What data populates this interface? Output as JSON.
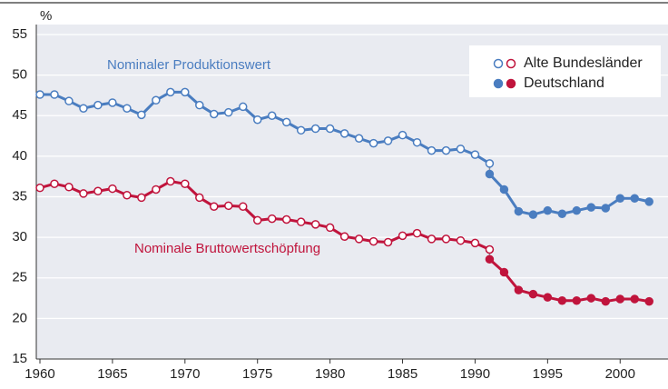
{
  "chart_data": {
    "type": "line",
    "y_unit_label": "%",
    "xlim": [
      1959.75,
      2003.3
    ],
    "xticks": [
      1960,
      1965,
      1970,
      1975,
      1980,
      1985,
      1990,
      1995,
      2000
    ],
    "ylim": [
      15,
      55
    ],
    "yticks": [
      15,
      20,
      25,
      30,
      35,
      40,
      45,
      50,
      55
    ],
    "grid": true,
    "legend_position": "upper right",
    "legend": [
      {
        "label": "Alte Bundesländer",
        "marker": "open"
      },
      {
        "label": "Deutschland",
        "marker": "filled"
      }
    ],
    "series": [
      {
        "name": "Nominaler Produktionswert",
        "color": "#4a7dc0",
        "parts": [
          {
            "x": [
              1960,
              1961,
              1962,
              1963,
              1964,
              1965,
              1966,
              1967,
              1968,
              1969,
              1970,
              1971,
              1972,
              1973,
              1974,
              1975,
              1976,
              1977,
              1978,
              1979,
              1980,
              1981,
              1982,
              1983,
              1984,
              1985,
              1986,
              1987,
              1988,
              1989,
              1990,
              1991
            ],
            "values": [
              47.6,
              47.6,
              46.8,
              45.9,
              46.3,
              46.6,
              45.9,
              45.1,
              46.9,
              47.9,
              47.9,
              46.3,
              45.2,
              45.4,
              46.1,
              44.5,
              45.0,
              44.2,
              43.2,
              43.4,
              43.4,
              42.8,
              42.2,
              41.6,
              41.9,
              42.6,
              41.7,
              40.7,
              40.7,
              40.9,
              40.2,
              39.1
            ]
          },
          {
            "x": [
              1991,
              1992,
              1993,
              1994,
              1995,
              1996,
              1997,
              1998,
              1999,
              2000,
              2001,
              2002
            ],
            "values": [
              37.8,
              35.9,
              33.2,
              32.8,
              33.3,
              32.9,
              33.3,
              33.7,
              33.6,
              34.8,
              34.8,
              34.4
            ]
          }
        ]
      },
      {
        "name": "Nominale Bruttowertschöpfung",
        "color": "#c0143c",
        "parts": [
          {
            "x": [
              1960,
              1961,
              1962,
              1963,
              1964,
              1965,
              1966,
              1967,
              1968,
              1969,
              1970,
              1971,
              1972,
              1973,
              1974,
              1975,
              1976,
              1977,
              1978,
              1979,
              1980,
              1981,
              1982,
              1983,
              1984,
              1985,
              1986,
              1987,
              1988,
              1989,
              1990,
              1991
            ],
            "values": [
              36.1,
              36.6,
              36.2,
              35.4,
              35.7,
              36.0,
              35.2,
              34.9,
              35.9,
              36.9,
              36.6,
              34.9,
              33.8,
              33.9,
              33.8,
              32.1,
              32.3,
              32.2,
              31.9,
              31.6,
              31.2,
              30.1,
              29.8,
              29.5,
              29.4,
              30.2,
              30.5,
              29.8,
              29.8,
              29.6,
              29.3,
              28.5
            ]
          },
          {
            "x": [
              1991,
              1992,
              1993,
              1994,
              1995,
              1996,
              1997,
              1998,
              1999,
              2000,
              2001,
              2002
            ],
            "values": [
              27.3,
              25.7,
              23.5,
              23.0,
              22.6,
              22.2,
              22.2,
              22.5,
              22.1,
              22.4,
              22.4,
              22.1
            ]
          }
        ]
      }
    ]
  }
}
